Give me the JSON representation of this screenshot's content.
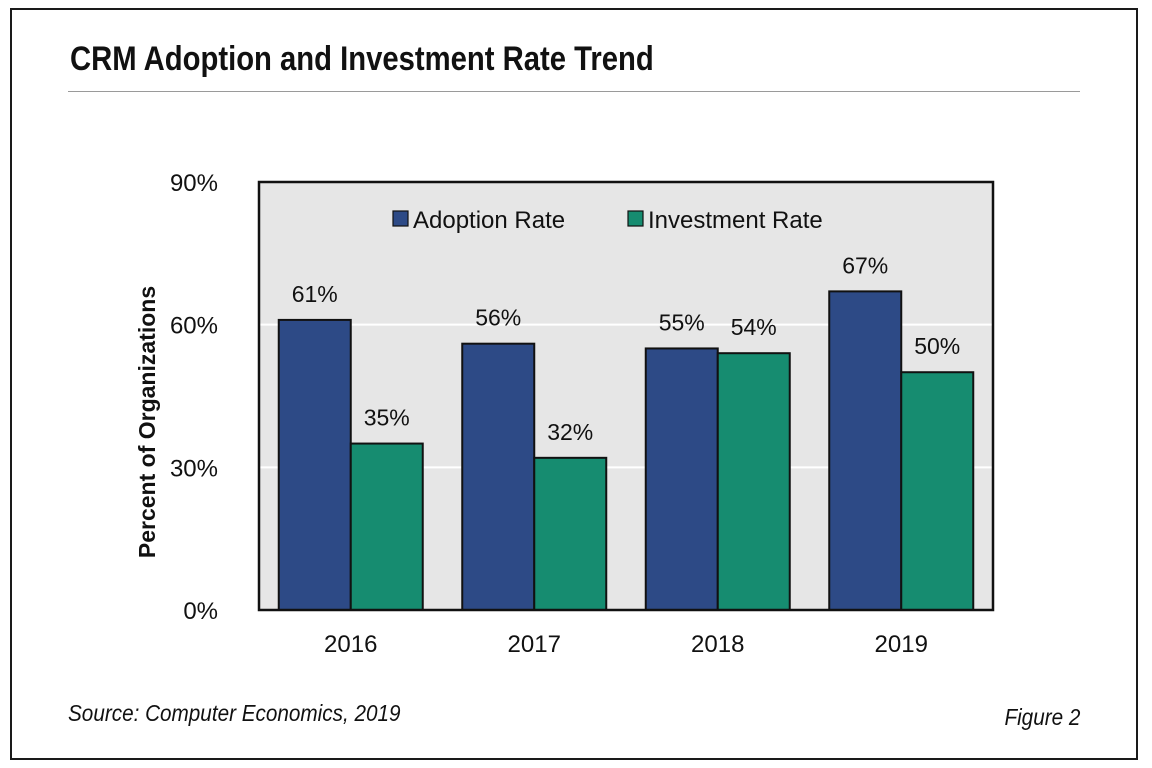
{
  "title": "CRM Adoption and Investment Rate Trend",
  "source": "Source: Computer Economics, 2019",
  "figure_label": "Figure 2",
  "colors": {
    "adoption": "#2d4a86",
    "investment": "#168c70",
    "plot_background": "#e6e6e6",
    "gridline": "#ffffff",
    "border": "#111111"
  },
  "chart_data": {
    "type": "bar",
    "categories": [
      "2016",
      "2017",
      "2018",
      "2019"
    ],
    "series": [
      {
        "name": "Adoption Rate",
        "values": [
          61,
          56,
          55,
          67
        ],
        "labels": [
          "61%",
          "56%",
          "55%",
          "67%"
        ]
      },
      {
        "name": "Investment Rate",
        "values": [
          35,
          32,
          54,
          50
        ],
        "labels": [
          "35%",
          "32%",
          "54%",
          "50%"
        ]
      }
    ],
    "ylabel": "Percent of Organizations",
    "xlabel": "",
    "ylim": [
      0,
      90
    ],
    "yticks": [
      0,
      30,
      60,
      90
    ],
    "ytick_labels": [
      "0%",
      "30%",
      "60%",
      "90%"
    ],
    "grid": true,
    "legend_position": "top-center"
  }
}
